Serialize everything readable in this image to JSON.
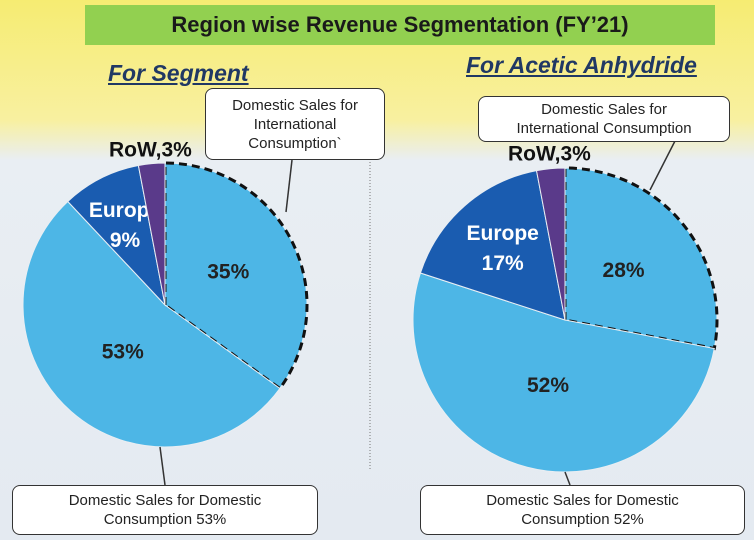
{
  "title": "Region wise Revenue Segmentation (FY’21)",
  "chart_data": [
    {
      "type": "pie",
      "title": "For Segment",
      "categories": [
        "Domestic Sales for International Consumption`",
        null,
        "Europe",
        null
      ],
      "values": [
        35,
        53,
        9,
        3
      ],
      "value_labels": [
        "35%",
        "53%",
        "9%",
        "RoW,3%"
      ],
      "colors": [
        "#4db6e6",
        "#4db6e6",
        "#1a5cb0",
        "#5a3a8a"
      ],
      "annotations": [
        "Domestic Sales for Domestic Consumption 53%"
      ]
    },
    {
      "type": "pie",
      "title": "For Acetic Anhydride",
      "categories": [
        "Domestic Sales for International Consumption",
        null,
        "Europe",
        null
      ],
      "values": [
        28,
        52,
        17,
        3
      ],
      "value_labels": [
        "28%",
        "52%",
        "17%",
        "RoW,3%"
      ],
      "colors": [
        "#4db6e6",
        "#4db6e6",
        "#1a5cb0",
        "#5a3a8a"
      ],
      "annotations": [
        "Domestic Sales for Domestic Consumption 52%"
      ]
    }
  ]
}
